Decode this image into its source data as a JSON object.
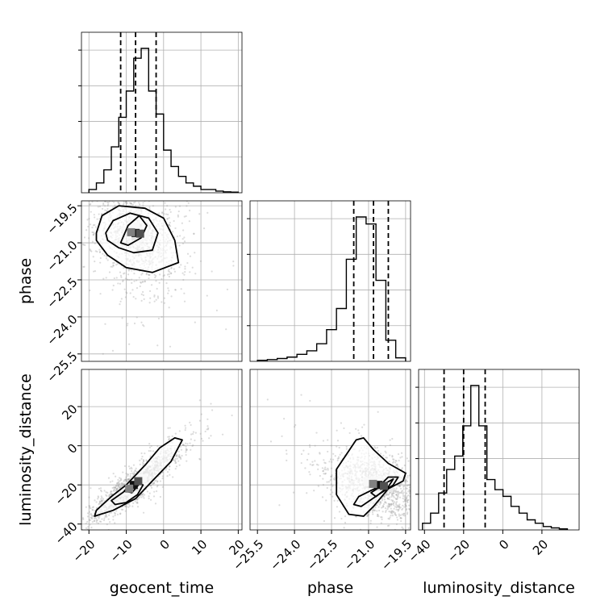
{
  "chart_data": {
    "type": "corner",
    "title": "",
    "parameters": [
      "geocent_time",
      "phase",
      "luminosity_distance"
    ],
    "grid": true,
    "colors": {
      "line": "#000000",
      "grid": "#b0b0b0",
      "points": "#9a9a9a",
      "background": "#ffffff"
    },
    "ranges": {
      "geocent_time": [
        -22,
        21
      ],
      "phase": [
        -25.8,
        -19.3
      ],
      "luminosity_distance": [
        -43,
        39
      ]
    },
    "ticks": {
      "geocent_time": {
        "values": [
          -20,
          -10,
          0,
          10,
          20
        ],
        "labels": [
          "−20",
          "−10",
          "0",
          "10",
          "20"
        ]
      },
      "phase": {
        "values": [
          -25.5,
          -24.0,
          -22.5,
          -21.0,
          -19.5
        ],
        "labels": [
          "−25.5",
          "−24.0",
          "−22.5",
          "−21.0",
          "−19.5"
        ]
      },
      "luminosity_distance": {
        "values": [
          -40,
          -20,
          0,
          20
        ],
        "labels": [
          "−40",
          "−20",
          "0",
          "20"
        ]
      }
    },
    "quantiles": {
      "geocent_time": [
        -11.5,
        -7.5,
        -2.0
      ],
      "phase": [
        -21.6,
        -20.8,
        -20.2
      ],
      "luminosity_distance": [
        -30,
        -20,
        -9
      ]
    },
    "histograms": {
      "geocent_time": {
        "range": [
          -20,
          20
        ],
        "counts": [
          1,
          3,
          7,
          14,
          23,
          31,
          41,
          44,
          31,
          24,
          13,
          8,
          5,
          3,
          2,
          1,
          1,
          0.5,
          0.3,
          0.2
        ]
      },
      "phase": {
        "range": [
          -25.5,
          -19.5
        ],
        "counts": [
          0.3,
          0.5,
          0.8,
          1.2,
          2,
          3,
          5,
          9,
          15,
          29,
          41,
          39,
          23,
          6,
          1
        ]
      },
      "luminosity_distance": {
        "range": [
          -41,
          33
        ],
        "counts": [
          2,
          5,
          11,
          18,
          22,
          31,
          43,
          31,
          15,
          12,
          10,
          7,
          5,
          3,
          2,
          1,
          0.6,
          0.3
        ]
      }
    },
    "joint": [
      {
        "x": "geocent_time",
        "y": "phase",
        "center": [
          -7.5,
          -20.6
        ],
        "spread": [
          5.5,
          1.0
        ],
        "corr": -0.25,
        "contours": [
          [
            [
              -18,
              -20.6
            ],
            [
              -16.5,
              -19.9
            ],
            [
              -12,
              -19.5
            ],
            [
              -5,
              -19.6
            ],
            [
              0,
              -20.0
            ],
            [
              3,
              -20.9
            ],
            [
              4,
              -21.8
            ],
            [
              -3,
              -22.2
            ],
            [
              -10,
              -22.0
            ],
            [
              -15,
              -21.5
            ],
            [
              -18,
              -20.9
            ]
          ],
          [
            [
              -15.5,
              -20.6
            ],
            [
              -13.5,
              -20.1
            ],
            [
              -9,
              -19.8
            ],
            [
              -4,
              -20.0
            ],
            [
              -1.5,
              -20.6
            ],
            [
              -3,
              -21.3
            ],
            [
              -8,
              -21.4
            ],
            [
              -12,
              -21.2
            ],
            [
              -15,
              -20.9
            ]
          ],
          [
            [
              -11.5,
              -21.0
            ],
            [
              -9.5,
              -20.3
            ],
            [
              -6.5,
              -19.9
            ],
            [
              -4.5,
              -20.3
            ],
            [
              -6,
              -20.8
            ],
            [
              -9.5,
              -21.1
            ]
          ]
        ]
      },
      {
        "x": "geocent_time",
        "y": "luminosity_distance",
        "center": [
          -8,
          -20
        ],
        "spread": [
          5.5,
          8.5
        ],
        "corr": 0.9,
        "contours": [
          [
            [
              -18.5,
              -36
            ],
            [
              -13.5,
              -33
            ],
            [
              -7.5,
              -27
            ],
            [
              -3,
              -18
            ],
            [
              2,
              -8
            ],
            [
              5,
              3
            ],
            [
              3,
              4
            ],
            [
              -1,
              -1
            ],
            [
              -5,
              -10
            ],
            [
              -10,
              -20
            ],
            [
              -14,
              -26
            ],
            [
              -18,
              -33
            ]
          ],
          [
            [
              -14,
              -28
            ],
            [
              -11,
              -24
            ],
            [
              -7.5,
              -19
            ],
            [
              -5.5,
              -20
            ],
            [
              -7,
              -25
            ],
            [
              -10,
              -29
            ],
            [
              -13,
              -30
            ]
          ],
          [
            [
              -10.5,
              -23
            ],
            [
              -8,
              -18.5
            ],
            [
              -6.5,
              -19.5
            ],
            [
              -8.5,
              -24
            ]
          ]
        ]
      },
      {
        "x": "phase",
        "y": "luminosity_distance",
        "center": [
          -20.6,
          -20
        ],
        "spread": [
          1.0,
          8.5
        ],
        "corr": -0.4,
        "contours": [
          [
            [
              -22.3,
              -12
            ],
            [
              -21.5,
              3
            ],
            [
              -21.2,
              4
            ],
            [
              -20.8,
              -2
            ],
            [
              -20.2,
              -9
            ],
            [
              -19.5,
              -14
            ],
            [
              -19.6,
              -18
            ],
            [
              -20.2,
              -22
            ],
            [
              -20.8,
              -31
            ],
            [
              -21.2,
              -36
            ],
            [
              -21.8,
              -35
            ],
            [
              -22.3,
              -25
            ]
          ],
          [
            [
              -21.6,
              -30
            ],
            [
              -21.4,
              -26
            ],
            [
              -20.6,
              -21
            ],
            [
              -20.2,
              -16
            ],
            [
              -19.8,
              -16
            ],
            [
              -20.0,
              -20
            ],
            [
              -20.6,
              -25
            ],
            [
              -21.3,
              -31
            ]
          ],
          [
            [
              -20.9,
              -24
            ],
            [
              -20.3,
              -19
            ],
            [
              -20.0,
              -17
            ],
            [
              -20.2,
              -21
            ],
            [
              -20.7,
              -26
            ]
          ]
        ]
      }
    ]
  }
}
